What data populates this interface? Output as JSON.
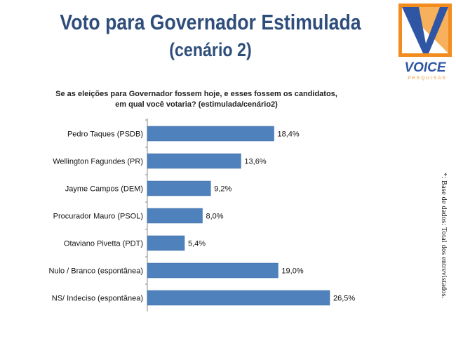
{
  "header": {
    "title": "Voto para Governador Estimulada",
    "subtitle": "(cenário 2)"
  },
  "logo": {
    "name": "VOICE",
    "tagline": "PESQUISAS"
  },
  "question": {
    "line1": "Se as eleições para Governador fossem hoje, e esses fossem os candidatos,",
    "line2": "em qual você votaria? (estimulada/cenário2)"
  },
  "side_note": "*: Base de dados: Total dos entrevistados.",
  "colors": {
    "bar": "#4f81bd",
    "bar_edge": "#3a6aa3",
    "title": "#2e4d7b",
    "logo_orange": "#f28c1e",
    "logo_blue": "#2f56a4"
  },
  "chart_data": {
    "type": "bar",
    "orientation": "horizontal",
    "categories": [
      "Pedro Taques (PSDB)",
      "Wellington Fagundes (PR)",
      "Jayme Campos (DEM)",
      "Procurador Mauro (PSOL)",
      "Otaviano Pivetta (PDT)",
      "Nulo / Branco (espontânea)",
      "NS/ Indeciso (espontânea)"
    ],
    "values": [
      18.4,
      13.6,
      9.2,
      8.0,
      5.4,
      19.0,
      26.5
    ],
    "value_labels": [
      "18,4%",
      "13,6%",
      "9,2%",
      "8,0%",
      "5,4%",
      "19,0%",
      "26,5%"
    ],
    "xlim": [
      0,
      26.5
    ]
  }
}
